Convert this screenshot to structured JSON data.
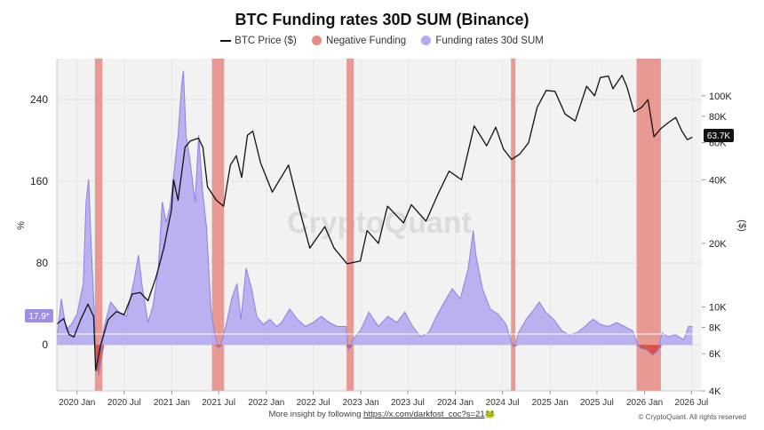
{
  "title": "BTC Funding rates 30D SUM (Binance)",
  "legend": {
    "price": "BTC Price ($)",
    "negative": "Negative Funding",
    "funding": "Funding rates 30d SUM"
  },
  "watermark": "CryptoQuant",
  "footer": {
    "prefix": "More insight by following",
    "link": "https://x.com/darkfost_coc?s=21",
    "emoji": "🐸"
  },
  "copyright": "© CryptoQuant. All rights reserved",
  "colors": {
    "funding_fill": "#b3aaef",
    "funding_stroke": "#8c82e0",
    "negative_band": "#e88a82",
    "negative_fill": "#d9443a",
    "price_line": "#111111",
    "plot_bg": "#f2f2f2"
  },
  "chart_data": {
    "type": "area",
    "title": "BTC Funding rates 30D SUM (Binance)",
    "x_range": [
      "2019-10-15",
      "2026-08-10"
    ],
    "x_ticks": [
      {
        "date": "2020-01-01",
        "label": "2020 Jan"
      },
      {
        "date": "2020-07-01",
        "label": "2020 Jul"
      },
      {
        "date": "2021-01-01",
        "label": "2021 Jan"
      },
      {
        "date": "2021-07-01",
        "label": "2021 Jul"
      },
      {
        "date": "2022-01-01",
        "label": "2022 Jan"
      },
      {
        "date": "2022-07-01",
        "label": "2022 Jul"
      },
      {
        "date": "2023-01-01",
        "label": "2023 Jan"
      },
      {
        "date": "2023-07-01",
        "label": "2023 Jul"
      },
      {
        "date": "2024-01-01",
        "label": "2024 Jan"
      },
      {
        "date": "2024-07-01",
        "label": "2024 Jul"
      },
      {
        "date": "2025-01-01",
        "label": "2025 Jan"
      },
      {
        "date": "2025-07-01",
        "label": "2025 Jul"
      },
      {
        "date": "2026-01-01",
        "label": "2026 Jan"
      },
      {
        "date": "2026-07-01",
        "label": "2026 Jul"
      }
    ],
    "y_left": {
      "label": "%",
      "range": [
        -45,
        280
      ],
      "ticks": [
        0,
        80,
        160,
        240
      ]
    },
    "y_right": {
      "label": "($)",
      "scale": "log",
      "range": [
        4000,
        150000
      ],
      "ticks": [
        {
          "value": 4000,
          "label": "4K"
        },
        {
          "value": 6000,
          "label": "6K"
        },
        {
          "value": 8000,
          "label": "8K"
        },
        {
          "value": 10000,
          "label": "10K"
        },
        {
          "value": 20000,
          "label": "20K"
        },
        {
          "value": 40000,
          "label": "40K"
        },
        {
          "value": 60000,
          "label": "60K"
        },
        {
          "value": 80000,
          "label": "80K"
        },
        {
          "value": 100000,
          "label": "100K"
        }
      ]
    },
    "current_funding_label": "17.9*",
    "current_price_label": "63.7K",
    "series": [
      {
        "name": "Funding rates 30d SUM",
        "axis": "left",
        "points": [
          [
            "2019-10-15",
            5
          ],
          [
            "2019-11-01",
            45
          ],
          [
            "2019-11-20",
            15
          ],
          [
            "2019-12-10",
            20
          ],
          [
            "2020-01-01",
            30
          ],
          [
            "2020-01-25",
            60
          ],
          [
            "2020-02-05",
            140
          ],
          [
            "2020-02-15",
            162
          ],
          [
            "2020-02-25",
            95
          ],
          [
            "2020-03-10",
            20
          ],
          [
            "2020-03-15",
            -20
          ],
          [
            "2020-03-25",
            -30
          ],
          [
            "2020-04-15",
            18
          ],
          [
            "2020-05-10",
            42
          ],
          [
            "2020-06-01",
            35
          ],
          [
            "2020-06-20",
            30
          ],
          [
            "2020-07-10",
            28
          ],
          [
            "2020-08-10",
            65
          ],
          [
            "2020-08-25",
            88
          ],
          [
            "2020-09-10",
            55
          ],
          [
            "2020-10-01",
            22
          ],
          [
            "2020-10-20",
            38
          ],
          [
            "2020-11-10",
            75
          ],
          [
            "2020-11-25",
            140
          ],
          [
            "2020-12-10",
            120
          ],
          [
            "2020-12-25",
            135
          ],
          [
            "2021-01-10",
            170
          ],
          [
            "2021-01-25",
            205
          ],
          [
            "2021-02-08",
            255
          ],
          [
            "2021-02-15",
            268
          ],
          [
            "2021-02-25",
            205
          ],
          [
            "2021-03-10",
            185
          ],
          [
            "2021-04-01",
            140
          ],
          [
            "2021-04-15",
            205
          ],
          [
            "2021-04-30",
            150
          ],
          [
            "2021-05-15",
            115
          ],
          [
            "2021-06-01",
            35
          ],
          [
            "2021-06-15",
            12
          ],
          [
            "2021-07-01",
            -3
          ],
          [
            "2021-07-15",
            5
          ],
          [
            "2021-08-01",
            22
          ],
          [
            "2021-08-20",
            45
          ],
          [
            "2021-09-10",
            60
          ],
          [
            "2021-09-25",
            25
          ],
          [
            "2021-10-15",
            75
          ],
          [
            "2021-11-05",
            55
          ],
          [
            "2021-11-25",
            28
          ],
          [
            "2021-12-20",
            20
          ],
          [
            "2022-01-15",
            25
          ],
          [
            "2022-02-10",
            18
          ],
          [
            "2022-03-01",
            22
          ],
          [
            "2022-04-01",
            35
          ],
          [
            "2022-05-01",
            25
          ],
          [
            "2022-06-01",
            18
          ],
          [
            "2022-07-01",
            22
          ],
          [
            "2022-08-01",
            28
          ],
          [
            "2022-09-01",
            22
          ],
          [
            "2022-10-01",
            18
          ],
          [
            "2022-11-05",
            18
          ],
          [
            "2022-11-15",
            -5
          ],
          [
            "2022-12-01",
            5
          ],
          [
            "2023-01-01",
            15
          ],
          [
            "2023-02-01",
            32
          ],
          [
            "2023-03-10",
            18
          ],
          [
            "2023-04-15",
            28
          ],
          [
            "2023-05-20",
            22
          ],
          [
            "2023-06-20",
            32
          ],
          [
            "2023-07-20",
            18
          ],
          [
            "2023-08-20",
            8
          ],
          [
            "2023-09-20",
            12
          ],
          [
            "2023-10-20",
            28
          ],
          [
            "2023-11-20",
            42
          ],
          [
            "2023-12-20",
            55
          ],
          [
            "2024-01-20",
            45
          ],
          [
            "2024-02-20",
            75
          ],
          [
            "2024-03-10",
            112
          ],
          [
            "2024-03-20",
            88
          ],
          [
            "2024-04-15",
            55
          ],
          [
            "2024-05-15",
            35
          ],
          [
            "2024-06-15",
            30
          ],
          [
            "2024-07-15",
            20
          ],
          [
            "2024-08-05",
            3
          ],
          [
            "2024-08-15",
            -2
          ],
          [
            "2024-09-01",
            12
          ],
          [
            "2024-10-01",
            25
          ],
          [
            "2024-11-01",
            35
          ],
          [
            "2024-11-20",
            42
          ],
          [
            "2024-12-15",
            32
          ],
          [
            "2025-01-15",
            25
          ],
          [
            "2025-02-15",
            14
          ],
          [
            "2025-03-15",
            10
          ],
          [
            "2025-04-15",
            12
          ],
          [
            "2025-05-15",
            18
          ],
          [
            "2025-06-15",
            25
          ],
          [
            "2025-07-15",
            20
          ],
          [
            "2025-08-15",
            18
          ],
          [
            "2025-09-15",
            22
          ],
          [
            "2025-10-15",
            18
          ],
          [
            "2025-11-15",
            14
          ],
          [
            "2025-12-01",
            3
          ],
          [
            "2025-12-15",
            -3
          ],
          [
            "2026-01-10",
            -5
          ],
          [
            "2026-02-01",
            -10
          ],
          [
            "2026-02-20",
            -6
          ],
          [
            "2026-03-10",
            12
          ],
          [
            "2026-04-01",
            8
          ],
          [
            "2026-05-01",
            10
          ],
          [
            "2026-06-01",
            5
          ],
          [
            "2026-06-20",
            18
          ],
          [
            "2026-07-05",
            17.9
          ]
        ]
      },
      {
        "name": "BTC Price ($)",
        "axis": "right",
        "points": [
          [
            "2019-10-15",
            8300
          ],
          [
            "2019-11-10",
            8800
          ],
          [
            "2019-12-01",
            7400
          ],
          [
            "2019-12-20",
            7200
          ],
          [
            "2020-01-15",
            8700
          ],
          [
            "2020-02-12",
            10300
          ],
          [
            "2020-03-05",
            9000
          ],
          [
            "2020-03-13",
            5000
          ],
          [
            "2020-04-01",
            6600
          ],
          [
            "2020-04-30",
            8700
          ],
          [
            "2020-06-01",
            9500
          ],
          [
            "2020-07-01",
            9200
          ],
          [
            "2020-08-01",
            11500
          ],
          [
            "2020-09-01",
            11700
          ],
          [
            "2020-10-01",
            10700
          ],
          [
            "2020-11-01",
            13800
          ],
          [
            "2020-12-01",
            19000
          ],
          [
            "2020-12-31",
            29000
          ],
          [
            "2021-01-08",
            40000
          ],
          [
            "2021-01-25",
            32000
          ],
          [
            "2021-02-21",
            57000
          ],
          [
            "2021-03-13",
            61000
          ],
          [
            "2021-04-14",
            63000
          ],
          [
            "2021-05-01",
            57000
          ],
          [
            "2021-05-19",
            37000
          ],
          [
            "2021-06-22",
            32000
          ],
          [
            "2021-07-20",
            30000
          ],
          [
            "2021-08-15",
            47000
          ],
          [
            "2021-09-07",
            52000
          ],
          [
            "2021-09-28",
            41000
          ],
          [
            "2021-10-20",
            65000
          ],
          [
            "2021-11-10",
            68000
          ],
          [
            "2021-12-10",
            48000
          ],
          [
            "2022-01-24",
            35000
          ],
          [
            "2022-03-28",
            47000
          ],
          [
            "2022-05-12",
            28000
          ],
          [
            "2022-06-18",
            19000
          ],
          [
            "2022-08-15",
            24000
          ],
          [
            "2022-09-20",
            19000
          ],
          [
            "2022-11-09",
            16000
          ],
          [
            "2022-12-30",
            16500
          ],
          [
            "2023-01-25",
            23000
          ],
          [
            "2023-03-10",
            20000
          ],
          [
            "2023-04-14",
            30000
          ],
          [
            "2023-06-15",
            25000
          ],
          [
            "2023-07-15",
            30500
          ],
          [
            "2023-09-10",
            25500
          ],
          [
            "2023-10-25",
            34000
          ],
          [
            "2023-12-08",
            44000
          ],
          [
            "2024-01-25",
            40000
          ],
          [
            "2024-03-14",
            72000
          ],
          [
            "2024-05-01",
            58000
          ],
          [
            "2024-06-05",
            71000
          ],
          [
            "2024-07-05",
            56000
          ],
          [
            "2024-08-05",
            50000
          ],
          [
            "2024-09-06",
            53000
          ],
          [
            "2024-10-10",
            60000
          ],
          [
            "2024-11-12",
            88000
          ],
          [
            "2024-12-17",
            106000
          ],
          [
            "2025-01-20",
            105000
          ],
          [
            "2025-02-28",
            82000
          ],
          [
            "2025-04-08",
            76000
          ],
          [
            "2025-05-22",
            111000
          ],
          [
            "2025-06-22",
            100000
          ],
          [
            "2025-07-14",
            122000
          ],
          [
            "2025-08-14",
            124000
          ],
          [
            "2025-09-01",
            108000
          ],
          [
            "2025-10-06",
            125000
          ],
          [
            "2025-10-25",
            110000
          ],
          [
            "2025-11-21",
            84000
          ],
          [
            "2025-12-20",
            88000
          ],
          [
            "2026-01-14",
            96000
          ],
          [
            "2026-02-06",
            64000
          ],
          [
            "2026-03-05",
            70000
          ],
          [
            "2026-04-05",
            75000
          ],
          [
            "2026-05-01",
            79000
          ],
          [
            "2026-05-25",
            68000
          ],
          [
            "2026-06-15",
            62000
          ],
          [
            "2026-07-05",
            63700
          ]
        ]
      }
    ],
    "negative_funding_periods": [
      [
        "2020-03-10",
        "2020-04-08"
      ],
      [
        "2021-06-05",
        "2021-07-22"
      ],
      [
        "2022-11-07",
        "2022-12-05"
      ],
      [
        "2024-08-03",
        "2024-08-20"
      ],
      [
        "2025-12-01",
        "2026-03-05"
      ]
    ],
    "grid": true
  }
}
